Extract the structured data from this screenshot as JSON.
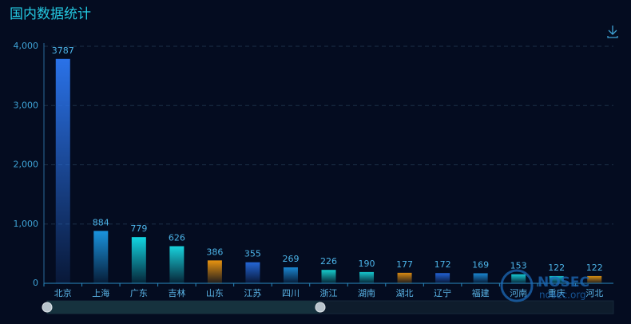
{
  "chart_data": {
    "type": "bar",
    "title": "国内数据统计",
    "categories": [
      "北京",
      "上海",
      "广东",
      "吉林",
      "山东",
      "江苏",
      "四川",
      "浙江",
      "湖南",
      "湖北",
      "辽宁",
      "福建",
      "河南",
      "重庆",
      "河北"
    ],
    "values": [
      3787,
      884,
      779,
      626,
      386,
      355,
      269,
      226,
      190,
      177,
      172,
      169,
      153,
      122,
      122
    ],
    "colors": [
      "#2a72e8",
      "#1a94de",
      "#12d6e2",
      "#18d2dc",
      "#e89410",
      "#2466d6",
      "#1a86d0",
      "#16cccc",
      "#16c6cc",
      "#d88a12",
      "#2262d4",
      "#1a86d0",
      "#16cad4",
      "#16bccc",
      "#d88e12"
    ],
    "ylim": [
      0,
      4000
    ],
    "yticks": [
      0,
      {
        "value": 1000,
        "label": "1,000"
      },
      {
        "value": 2000,
        "label": "2,000"
      },
      {
        "value": 3000,
        "label": "3,000"
      },
      {
        "value": 4000,
        "label": "4,000"
      }
    ],
    "grid": true,
    "watermark": {
      "title": "NOSEC",
      "subtitle": "nosec.org"
    }
  }
}
